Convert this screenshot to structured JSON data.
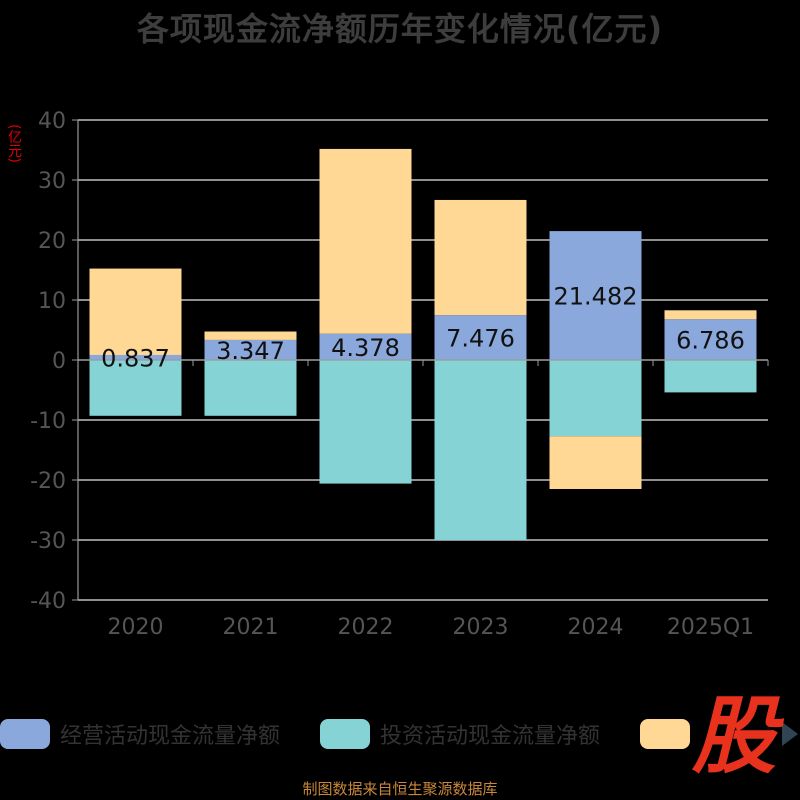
{
  "title": "各项现金流净额历年变化情况(亿元)",
  "unit_label": "(亿元)",
  "watermark": "股",
  "source_note": "制图数据来自恒生聚源数据库",
  "colors": {
    "operating": "#8aa8db",
    "investing": "#86d3d6",
    "financing": "#ffd896",
    "axis": "#9a9a9a",
    "grid": "#e6e6e6",
    "tick_text": "#555555"
  },
  "legend": [
    {
      "name": "经营活动现金流量净额",
      "color": "#8aa8db"
    },
    {
      "name": "投资活动现金流量净额",
      "color": "#86d3d6"
    },
    {
      "name": "",
      "color": "#ffd896"
    }
  ],
  "chart_data": {
    "type": "bar",
    "stacked": true,
    "categories": [
      "2020",
      "2021",
      "2022",
      "2023",
      "2024",
      "2025Q1"
    ],
    "ylim": [
      -40,
      40
    ],
    "yticks": [
      40,
      30,
      20,
      10,
      0,
      -10,
      -20,
      -30,
      -40
    ],
    "grid": true,
    "legend_position": "bottom",
    "series": [
      {
        "name": "经营活动现金流量净额",
        "values": [
          0.837,
          3.347,
          4.378,
          7.476,
          21.482,
          6.786
        ],
        "labels": [
          "0.837",
          "3.347",
          "4.378",
          "7.476",
          "21.482",
          "6.786"
        ]
      },
      {
        "name": "投资活动现金流量净额",
        "values": [
          -9.3,
          -9.3,
          -20.6,
          -30.0,
          -12.7,
          -5.4
        ]
      },
      {
        "name": "",
        "values": [
          14.4,
          1.4,
          30.8,
          19.2,
          -8.8,
          1.5
        ]
      }
    ]
  }
}
